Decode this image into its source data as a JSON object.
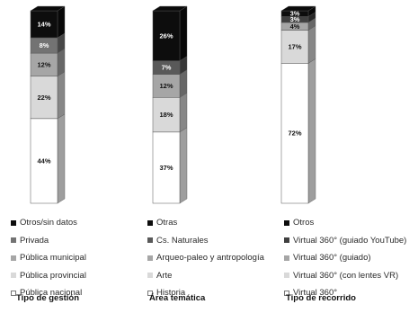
{
  "chart_data": {
    "type": "bar",
    "stacked": true,
    "percent_labels": true,
    "groups": [
      {
        "title": "Tipo de gestión",
        "segments": [
          {
            "name": "Pública nacional",
            "value": 44,
            "label": "44%",
            "color": "#ffffff"
          },
          {
            "name": "Pública provincial",
            "value": 22,
            "label": "22%",
            "color": "#d9d9d9"
          },
          {
            "name": "Pública municipal",
            "value": 12,
            "label": "12%",
            "color": "#a6a6a6"
          },
          {
            "name": "Privada",
            "value": 8,
            "label": "8%",
            "color": "#737373"
          },
          {
            "name": "Otros/sin datos",
            "value": 14,
            "label": "14%",
            "color": "#0d0d0d"
          }
        ]
      },
      {
        "title": "Área temática",
        "segments": [
          {
            "name": "Historia",
            "value": 37,
            "label": "37%",
            "color": "#ffffff"
          },
          {
            "name": "Arte",
            "value": 18,
            "label": "18%",
            "color": "#d9d9d9"
          },
          {
            "name": "Arqueo-paleo y antropología",
            "value": 12,
            "label": "12%",
            "color": "#a6a6a6"
          },
          {
            "name": "Cs. Naturales",
            "value": 7,
            "label": "7%",
            "color": "#595959"
          },
          {
            "name": "Otras",
            "value": 26,
            "label": "26%",
            "color": "#0d0d0d"
          }
        ]
      },
      {
        "title": "Tipo de recorrido",
        "segments": [
          {
            "name": "Virtual 360°",
            "value": 72,
            "label": "72%",
            "color": "#ffffff"
          },
          {
            "name": "Virtual 360° (con lentes VR)",
            "value": 17,
            "label": "17%",
            "color": "#d9d9d9"
          },
          {
            "name": "Virtual 360° (guiado)",
            "value": 4,
            "label": "4%",
            "color": "#a6a6a6"
          },
          {
            "name": "Virtual 360° (guiado YouTube)",
            "value": 3,
            "label": "3%",
            "color": "#404040"
          },
          {
            "name": "Otros",
            "value": 3,
            "label": "3%",
            "color": "#0d0d0d"
          }
        ]
      }
    ]
  }
}
